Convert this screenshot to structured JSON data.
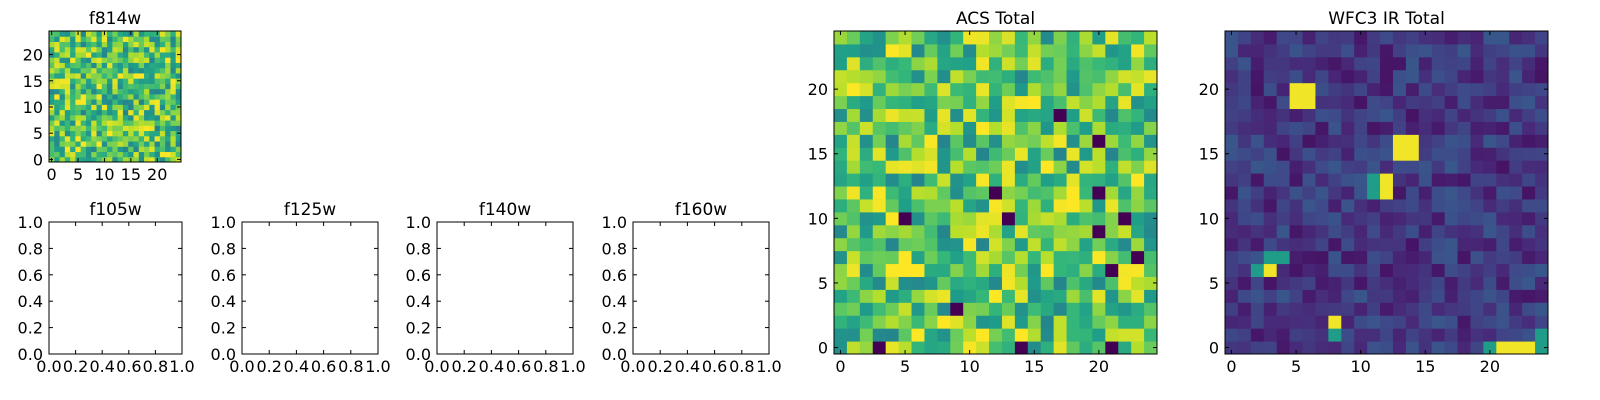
{
  "chart_data": [
    {
      "type": "heatmap",
      "title": "f814w",
      "xlabel": "",
      "ylabel": "",
      "xlim": [
        -0.5,
        24.5
      ],
      "ylim": [
        -0.5,
        24.5
      ],
      "xticks": [
        0,
        5,
        10,
        15,
        20
      ],
      "yticks": [
        0,
        5,
        10,
        15,
        20
      ],
      "colormap": "viridis",
      "grid_size": [
        25,
        25
      ],
      "pattern": "uniform noise, mostly high values"
    },
    {
      "type": "heatmap",
      "title": "ACS Total",
      "xlabel": "",
      "ylabel": "",
      "xlim": [
        -0.5,
        24.5
      ],
      "ylim": [
        -0.5,
        24.5
      ],
      "xticks": [
        0,
        5,
        10,
        15,
        20
      ],
      "yticks": [
        0,
        5,
        10,
        15,
        20
      ],
      "colormap": "viridis",
      "grid_size": [
        25,
        25
      ],
      "pattern": "uniform noise, mostly high values",
      "low_cells": [
        [
          3,
          0
        ],
        [
          21,
          0
        ],
        [
          9,
          3
        ],
        [
          5,
          10
        ],
        [
          12,
          12
        ],
        [
          13,
          10
        ],
        [
          17,
          18
        ],
        [
          20,
          12
        ],
        [
          20,
          16
        ],
        [
          22,
          10
        ],
        [
          23,
          7
        ],
        [
          21,
          6
        ],
        [
          14,
          0
        ],
        [
          20,
          9
        ]
      ],
      "high_cells": [
        [
          11,
          17
        ],
        [
          18,
          11
        ],
        [
          18,
          12
        ],
        [
          5,
          6
        ],
        [
          5,
          7
        ],
        [
          4,
          10
        ],
        [
          16,
          6
        ],
        [
          15,
          19
        ],
        [
          8,
          2
        ],
        [
          11,
          1
        ],
        [
          14,
          1
        ],
        [
          16,
          14
        ],
        [
          23,
          13
        ],
        [
          4,
          23
        ]
      ]
    },
    {
      "type": "heatmap",
      "title": "WFC3 IR Total",
      "xlabel": "",
      "ylabel": "",
      "xlim": [
        -0.5,
        24.5
      ],
      "ylim": [
        -0.5,
        24.5
      ],
      "xticks": [
        0,
        5,
        10,
        15,
        20
      ],
      "yticks": [
        0,
        5,
        10,
        15,
        20
      ],
      "colormap": "viridis",
      "grid_size": [
        25,
        25
      ],
      "pattern": "low background with a few bright sources",
      "bright_cells": [
        [
          13,
          15
        ],
        [
          14,
          15
        ],
        [
          13,
          16
        ],
        [
          14,
          16
        ],
        [
          12,
          12
        ],
        [
          12,
          13
        ],
        [
          3,
          6
        ],
        [
          8,
          2
        ],
        [
          23,
          0
        ],
        [
          6,
          20
        ],
        [
          5,
          20
        ],
        [
          6,
          19
        ],
        [
          5,
          19
        ],
        [
          22,
          0
        ],
        [
          21,
          0
        ]
      ],
      "medium_cells": [
        [
          2,
          6
        ],
        [
          3,
          7
        ],
        [
          4,
          7
        ],
        [
          11,
          13
        ],
        [
          11,
          12
        ],
        [
          8,
          1
        ],
        [
          24,
          0
        ],
        [
          24,
          1
        ],
        [
          20,
          0
        ]
      ]
    },
    {
      "type": "empty",
      "title": "f105w",
      "xlim": [
        0.0,
        1.0
      ],
      "ylim": [
        0.0,
        1.0
      ],
      "xticks": [
        "0.0",
        "0.2",
        "0.4",
        "0.6",
        "0.8",
        "1.0"
      ],
      "yticks": [
        "0.0",
        "0.2",
        "0.4",
        "0.6",
        "0.8",
        "1.0"
      ]
    },
    {
      "type": "empty",
      "title": "f125w",
      "xlim": [
        0.0,
        1.0
      ],
      "ylim": [
        0.0,
        1.0
      ],
      "xticks": [
        "0.0",
        "0.2",
        "0.4",
        "0.6",
        "0.8",
        "1.0"
      ],
      "yticks": [
        "0.0",
        "0.2",
        "0.4",
        "0.6",
        "0.8",
        "1.0"
      ]
    },
    {
      "type": "empty",
      "title": "f140w",
      "xlim": [
        0.0,
        1.0
      ],
      "ylim": [
        0.0,
        1.0
      ],
      "xticks": [
        "0.0",
        "0.2",
        "0.4",
        "0.6",
        "0.8",
        "1.0"
      ],
      "yticks": [
        "0.0",
        "0.2",
        "0.4",
        "0.6",
        "0.8",
        "1.0"
      ]
    },
    {
      "type": "empty",
      "title": "f160w",
      "xlim": [
        0.0,
        1.0
      ],
      "ylim": [
        0.0,
        1.0
      ],
      "xticks": [
        "0.0",
        "0.2",
        "0.4",
        "0.6",
        "0.8",
        "1.0"
      ],
      "yticks": [
        "0.0",
        "0.2",
        "0.4",
        "0.6",
        "0.8",
        "1.0"
      ]
    }
  ]
}
